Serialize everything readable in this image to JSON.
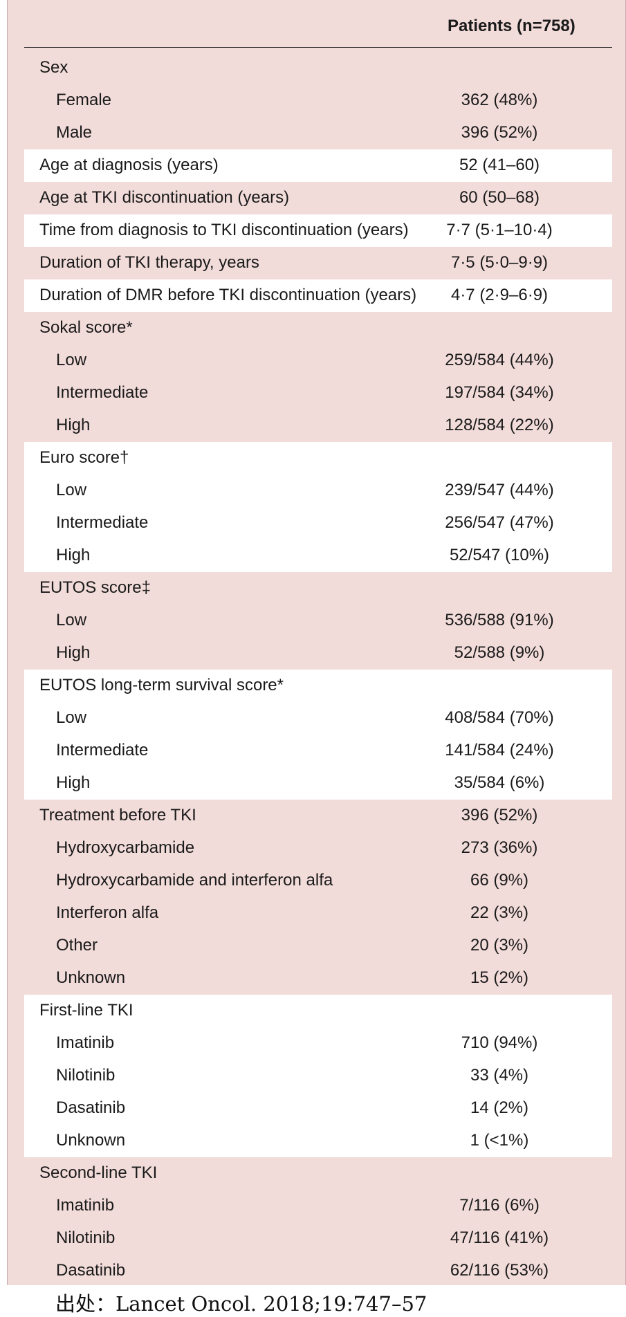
{
  "header": {
    "patients_label": "Patients (n=758)"
  },
  "rows": [
    {
      "label": "Sex",
      "value": "",
      "indent": 0,
      "bg": 0
    },
    {
      "label": "Female",
      "value": "362 (48%)",
      "indent": 1,
      "bg": 0
    },
    {
      "label": "Male",
      "value": "396 (52%)",
      "indent": 1,
      "bg": 0
    },
    {
      "label": "Age at diagnosis (years)",
      "value": "52 (41–60)",
      "indent": 0,
      "bg": 1
    },
    {
      "label": "Age at TKI discontinuation (years)",
      "value": "60 (50–68)",
      "indent": 0,
      "bg": 0
    },
    {
      "label": "Time from diagnosis to TKI discontinuation (years)",
      "value": "7·7 (5·1–10·4)",
      "indent": 0,
      "bg": 1
    },
    {
      "label": "Duration of TKI therapy, years",
      "value": "7·5 (5·0–9·9)",
      "indent": 0,
      "bg": 0
    },
    {
      "label": "Duration of DMR before TKI discontinuation (years)",
      "value": "4·7 (2·9–6·9)",
      "indent": 0,
      "bg": 1
    },
    {
      "label": "Sokal score*",
      "value": "",
      "indent": 0,
      "bg": 0
    },
    {
      "label": "Low",
      "value": "259/584 (44%)",
      "indent": 1,
      "bg": 0
    },
    {
      "label": "Intermediate",
      "value": "197/584 (34%)",
      "indent": 1,
      "bg": 0
    },
    {
      "label": "High",
      "value": "128/584 (22%)",
      "indent": 1,
      "bg": 0
    },
    {
      "label": "Euro score†",
      "value": "",
      "indent": 0,
      "bg": 1
    },
    {
      "label": "Low",
      "value": "239/547 (44%)",
      "indent": 1,
      "bg": 1
    },
    {
      "label": "Intermediate",
      "value": "256/547 (47%)",
      "indent": 1,
      "bg": 1
    },
    {
      "label": "High",
      "value": "52/547 (10%)",
      "indent": 1,
      "bg": 1
    },
    {
      "label": "EUTOS score‡",
      "value": "",
      "indent": 0,
      "bg": 0
    },
    {
      "label": "Low",
      "value": "536/588 (91%)",
      "indent": 1,
      "bg": 0
    },
    {
      "label": "High",
      "value": "52/588 (9%)",
      "indent": 1,
      "bg": 0
    },
    {
      "label": "EUTOS long-term survival score*",
      "value": "",
      "indent": 0,
      "bg": 1
    },
    {
      "label": "Low",
      "value": "408/584 (70%)",
      "indent": 1,
      "bg": 1
    },
    {
      "label": "Intermediate",
      "value": "141/584 (24%)",
      "indent": 1,
      "bg": 1
    },
    {
      "label": "High",
      "value": "35/584 (6%)",
      "indent": 1,
      "bg": 1
    },
    {
      "label": "Treatment before TKI",
      "value": "396 (52%)",
      "indent": 0,
      "bg": 0
    },
    {
      "label": "Hydroxycarbamide",
      "value": "273 (36%)",
      "indent": 1,
      "bg": 0
    },
    {
      "label": "Hydroxycarbamide and interferon alfa",
      "value": "66 (9%)",
      "indent": 1,
      "bg": 0
    },
    {
      "label": "Interferon alfa",
      "value": "22 (3%)",
      "indent": 1,
      "bg": 0
    },
    {
      "label": "Other",
      "value": "20 (3%)",
      "indent": 1,
      "bg": 0
    },
    {
      "label": "Unknown",
      "value": "15 (2%)",
      "indent": 1,
      "bg": 0
    },
    {
      "label": "First-line TKI",
      "value": "",
      "indent": 0,
      "bg": 1
    },
    {
      "label": "Imatinib",
      "value": "710 (94%)",
      "indent": 1,
      "bg": 1
    },
    {
      "label": "Nilotinib",
      "value": "33 (4%)",
      "indent": 1,
      "bg": 1
    },
    {
      "label": "Dasatinib",
      "value": "14 (2%)",
      "indent": 1,
      "bg": 1
    },
    {
      "label": "Unknown",
      "value": "1 (<1%)",
      "indent": 1,
      "bg": 1
    },
    {
      "label": "Second-line TKI",
      "value": "",
      "indent": 0,
      "bg": 0
    },
    {
      "label": "Imatinib",
      "value": "7/116 (6%)",
      "indent": 1,
      "bg": 0
    },
    {
      "label": "Nilotinib",
      "value": "47/116 (41%)",
      "indent": 1,
      "bg": 0
    },
    {
      "label": "Dasatinib",
      "value": "62/116 (53%)",
      "indent": 1,
      "bg": 0
    }
  ],
  "source": "出处：Lancet Oncol. 2018;19:747–57"
}
